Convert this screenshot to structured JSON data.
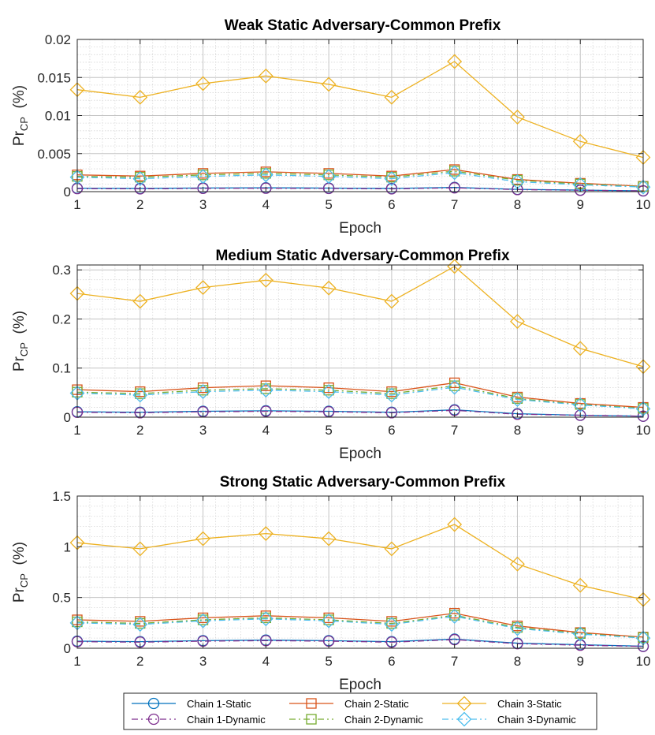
{
  "chart_data": [
    {
      "type": "line",
      "title": "Weak Static Adversary-Common Prefix",
      "xlabel": "Epoch",
      "ylabel_main": "Pr",
      "ylabel_sub": "CP",
      "ylabel_unit": "(%)",
      "x": [
        1,
        2,
        3,
        4,
        5,
        6,
        7,
        8,
        9,
        10
      ],
      "xlim": [
        1,
        10
      ],
      "ylim": [
        0,
        0.02
      ],
      "yticks": [
        0,
        0.005,
        0.01,
        0.015,
        0.02
      ],
      "ytick_labels": [
        "0",
        "0.005",
        "0.01",
        "0.015",
        "0.02"
      ],
      "grid": true,
      "series": [
        {
          "name": "Chain 1-Static",
          "values": [
            0.00045,
            0.00042,
            0.00048,
            0.0005,
            0.00047,
            0.00042,
            0.00055,
            0.0003,
            0.0002,
            0.0001
          ]
        },
        {
          "name": "Chain 2-Static",
          "values": [
            0.0022,
            0.00205,
            0.0024,
            0.0026,
            0.0024,
            0.00205,
            0.0029,
            0.0016,
            0.0011,
            0.0007
          ]
        },
        {
          "name": "Chain 3-Static",
          "values": [
            0.0134,
            0.0124,
            0.0142,
            0.0152,
            0.0141,
            0.0124,
            0.0171,
            0.0098,
            0.0066,
            0.0045
          ]
        },
        {
          "name": "Chain 1-Dynamic",
          "values": [
            0.0004,
            0.00037,
            0.00043,
            0.00045,
            0.00042,
            0.00037,
            0.0005,
            0.00027,
            0.00018,
            0.0001
          ]
        },
        {
          "name": "Chain 2-Dynamic",
          "values": [
            0.002,
            0.0019,
            0.0022,
            0.0024,
            0.0022,
            0.0019,
            0.0027,
            0.0015,
            0.001,
            0.00065
          ]
        },
        {
          "name": "Chain 3-Dynamic",
          "values": [
            0.0019,
            0.0017,
            0.002,
            0.0022,
            0.002,
            0.0017,
            0.0025,
            0.0013,
            0.0009,
            0.0006
          ]
        }
      ]
    },
    {
      "type": "line",
      "title": "Medium Static Adversary-Common Prefix",
      "xlabel": "Epoch",
      "ylabel_main": "Pr",
      "ylabel_sub": "CP",
      "ylabel_unit": "(%)",
      "x": [
        1,
        2,
        3,
        4,
        5,
        6,
        7,
        8,
        9,
        10
      ],
      "xlim": [
        1,
        10
      ],
      "ylim": [
        0,
        0.31
      ],
      "yticks": [
        0,
        0.1,
        0.2,
        0.3
      ],
      "ytick_labels": [
        "0",
        "0.1",
        "0.2",
        "0.3"
      ],
      "grid": true,
      "series": [
        {
          "name": "Chain 1-Static",
          "values": [
            0.011,
            0.01,
            0.012,
            0.013,
            0.012,
            0.01,
            0.015,
            0.007,
            0.004,
            0.002
          ]
        },
        {
          "name": "Chain 2-Static",
          "values": [
            0.056,
            0.052,
            0.06,
            0.064,
            0.06,
            0.052,
            0.07,
            0.041,
            0.028,
            0.02
          ]
        },
        {
          "name": "Chain 3-Static",
          "values": [
            0.252,
            0.236,
            0.264,
            0.279,
            0.263,
            0.236,
            0.307,
            0.195,
            0.14,
            0.103
          ]
        },
        {
          "name": "Chain 1-Dynamic",
          "values": [
            0.01,
            0.009,
            0.011,
            0.012,
            0.011,
            0.009,
            0.014,
            0.006,
            0.004,
            0.002
          ]
        },
        {
          "name": "Chain 2-Dynamic",
          "values": [
            0.051,
            0.048,
            0.055,
            0.058,
            0.055,
            0.048,
            0.064,
            0.038,
            0.026,
            0.018
          ]
        },
        {
          "name": "Chain 3-Dynamic",
          "values": [
            0.049,
            0.045,
            0.052,
            0.055,
            0.052,
            0.045,
            0.061,
            0.036,
            0.025,
            0.017
          ]
        }
      ]
    },
    {
      "type": "line",
      "title": "Strong Static Adversary-Common Prefix",
      "xlabel": "Epoch",
      "ylabel_main": "Pr",
      "ylabel_sub": "CP",
      "ylabel_unit": "(%)",
      "x": [
        1,
        2,
        3,
        4,
        5,
        6,
        7,
        8,
        9,
        10
      ],
      "xlim": [
        1,
        10
      ],
      "ylim": [
        0,
        1.5
      ],
      "yticks": [
        0,
        0.5,
        1,
        1.5
      ],
      "ytick_labels": [
        "0",
        "0.5",
        "1",
        "1.5"
      ],
      "grid": true,
      "series": [
        {
          "name": "Chain 1-Static",
          "values": [
            0.07,
            0.065,
            0.075,
            0.08,
            0.075,
            0.065,
            0.09,
            0.05,
            0.035,
            0.02
          ]
        },
        {
          "name": "Chain 2-Static",
          "values": [
            0.28,
            0.265,
            0.3,
            0.32,
            0.3,
            0.265,
            0.345,
            0.22,
            0.155,
            0.11
          ]
        },
        {
          "name": "Chain 3-Static",
          "values": [
            1.04,
            0.98,
            1.08,
            1.13,
            1.08,
            0.98,
            1.22,
            0.83,
            0.62,
            0.48
          ]
        },
        {
          "name": "Chain 1-Dynamic",
          "values": [
            0.065,
            0.06,
            0.07,
            0.075,
            0.07,
            0.06,
            0.085,
            0.045,
            0.03,
            0.018
          ]
        },
        {
          "name": "Chain 2-Dynamic",
          "values": [
            0.26,
            0.245,
            0.28,
            0.3,
            0.28,
            0.245,
            0.325,
            0.205,
            0.145,
            0.105
          ]
        },
        {
          "name": "Chain 3-Dynamic",
          "values": [
            0.25,
            0.235,
            0.27,
            0.29,
            0.27,
            0.235,
            0.315,
            0.195,
            0.14,
            0.1
          ]
        }
      ]
    }
  ],
  "legend": {
    "position": "bottom-outside",
    "entries": [
      {
        "label": "Chain 1-Static",
        "color": "#0072BD",
        "marker": "circle",
        "dash": "solid"
      },
      {
        "label": "Chain 2-Static",
        "color": "#D95319",
        "marker": "square",
        "dash": "solid"
      },
      {
        "label": "Chain 3-Static",
        "color": "#EDB120",
        "marker": "diamond",
        "dash": "solid"
      },
      {
        "label": "Chain 1-Dynamic",
        "color": "#7E2F8E",
        "marker": "circle",
        "dash": "dashdot"
      },
      {
        "label": "Chain 2-Dynamic",
        "color": "#77AC30",
        "marker": "square",
        "dash": "dashdot"
      },
      {
        "label": "Chain 3-Dynamic",
        "color": "#4DBEEE",
        "marker": "diamond",
        "dash": "dashdot"
      }
    ]
  }
}
